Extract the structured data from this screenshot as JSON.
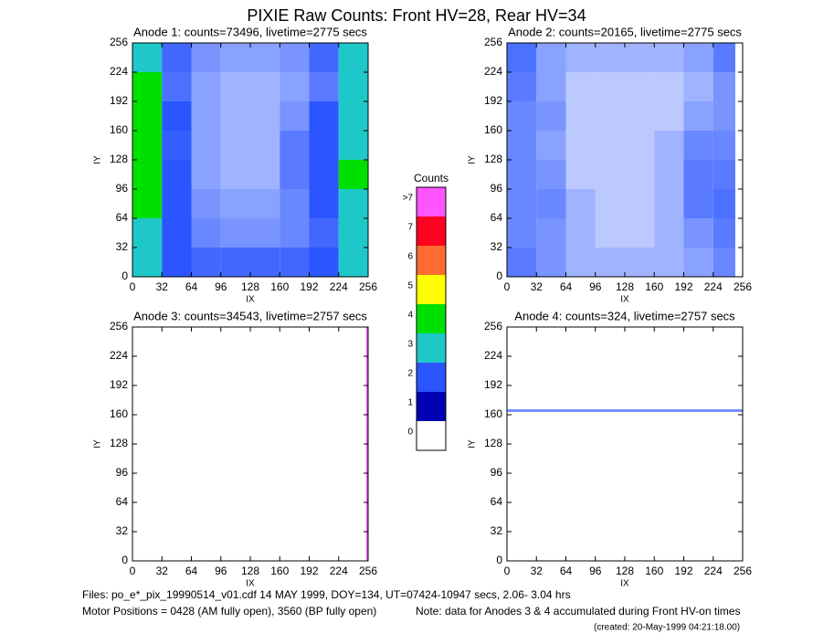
{
  "title": "PIXIE Raw Counts:  Front HV=28, Rear HV=34",
  "colorbar": {
    "title": "Counts",
    "ticks": [
      0,
      1,
      2,
      3,
      4,
      5,
      6,
      7,
      {
        "value": 8,
        "label": ">7"
      }
    ],
    "colors": [
      "#ffffff",
      "#0000b4",
      "#2a55ff",
      "#1ec8c8",
      "#00e000",
      "#ffff00",
      "#ff6a30",
      "#ff0020",
      "#ff55ff"
    ]
  },
  "chart_data": [
    {
      "type": "heatmap",
      "title": "Anode 1: counts=73496, livetime=2775 secs",
      "xlabel": "IX",
      "ylabel": "IY",
      "xlim": [
        0,
        256
      ],
      "ylim": [
        0,
        256
      ],
      "xticks": [
        0,
        32,
        64,
        96,
        128,
        160,
        192,
        224,
        256
      ],
      "yticks": [
        0,
        32,
        64,
        96,
        128,
        160,
        192,
        224,
        256
      ],
      "xbins": [
        0,
        32,
        64,
        96,
        128,
        160,
        192,
        224,
        256
      ],
      "ybins": [
        0,
        32,
        64,
        96,
        128,
        160,
        192,
        224,
        256
      ],
      "values": [
        [
          2.5,
          1.0,
          0.8,
          0.8,
          0.8,
          0.8,
          1.0,
          2.0
        ],
        [
          2.8,
          1.0,
          0.5,
          0.4,
          0.4,
          0.5,
          0.8,
          2.4
        ],
        [
          3.0,
          1.3,
          0.4,
          0.3,
          0.3,
          0.5,
          1.2,
          2.8
        ],
        [
          3.2,
          1.2,
          0.3,
          0.2,
          0.2,
          0.6,
          1.8,
          3.0
        ],
        [
          3.0,
          0.9,
          0.3,
          0.2,
          0.2,
          0.6,
          1.6,
          2.6
        ],
        [
          3.2,
          1.0,
          0.3,
          0.2,
          0.2,
          0.4,
          1.2,
          2.8
        ],
        [
          3.0,
          0.7,
          0.3,
          0.2,
          0.2,
          0.3,
          0.6,
          2.2
        ],
        [
          2.5,
          0.8,
          0.4,
          0.3,
          0.3,
          0.4,
          0.8,
          2.0
        ]
      ]
    },
    {
      "type": "heatmap",
      "title": "Anode 2: counts=20165, livetime=2775 secs",
      "xlabel": "IX",
      "ylabel": "IY",
      "xlim": [
        0,
        256
      ],
      "ylim": [
        0,
        256
      ],
      "xticks": [
        0,
        32,
        64,
        96,
        128,
        160,
        192,
        224,
        256
      ],
      "yticks": [
        0,
        32,
        64,
        96,
        128,
        160,
        192,
        224,
        256
      ],
      "xbins": [
        0,
        32,
        64,
        96,
        128,
        160,
        192,
        224,
        248
      ],
      "ybins": [
        0,
        32,
        64,
        96,
        128,
        160,
        192,
        224,
        256
      ],
      "values": [
        [
          0.6,
          0.4,
          0.2,
          0.2,
          0.2,
          0.2,
          0.3,
          0.5
        ],
        [
          0.5,
          0.4,
          0.2,
          0.1,
          0.1,
          0.2,
          0.4,
          0.6
        ],
        [
          0.5,
          0.5,
          0.2,
          0.1,
          0.1,
          0.2,
          0.6,
          0.7
        ],
        [
          0.5,
          0.4,
          0.1,
          0.1,
          0.1,
          0.2,
          0.6,
          0.6
        ],
        [
          0.5,
          0.3,
          0.1,
          0.1,
          0.1,
          0.2,
          0.5,
          0.5
        ],
        [
          0.5,
          0.4,
          0.1,
          0.1,
          0.1,
          0.1,
          0.3,
          0.4
        ],
        [
          0.6,
          0.3,
          0.1,
          0.1,
          0.1,
          0.1,
          0.2,
          0.4
        ],
        [
          0.7,
          0.3,
          0.2,
          0.2,
          0.2,
          0.2,
          0.3,
          0.6
        ]
      ]
    },
    {
      "type": "heatmap",
      "title": "Anode 3: counts=34543, livetime=2757 secs",
      "xlabel": "IX",
      "ylabel": "IY",
      "xlim": [
        0,
        256
      ],
      "ylim": [
        0,
        256
      ],
      "xticks": [
        0,
        32,
        64,
        96,
        128,
        160,
        192,
        224,
        256
      ],
      "yticks": [
        0,
        32,
        64,
        96,
        128,
        160,
        192,
        224,
        256
      ],
      "xbins": [
        0,
        254,
        256
      ],
      "ybins": [
        0,
        256
      ],
      "values": [
        [
          0,
          67
        ]
      ]
    },
    {
      "type": "heatmap",
      "title": "Anode 4: counts=324, livetime=2757 secs",
      "xlabel": "IX",
      "ylabel": "IY",
      "xlim": [
        0,
        256
      ],
      "ylim": [
        0,
        256
      ],
      "xticks": [
        0,
        32,
        64,
        96,
        128,
        160,
        192,
        224,
        256
      ],
      "yticks": [
        0,
        32,
        64,
        96,
        128,
        160,
        192,
        224,
        256
      ],
      "xbins": [
        0,
        256
      ],
      "ybins": [
        0,
        163,
        166,
        256
      ],
      "values": [
        [
          0
        ],
        [
          0.42
        ],
        [
          0
        ]
      ]
    }
  ],
  "footer": {
    "files": "Files: po_e*_pix_19990514_v01.cdf   14 MAY 1999, DOY=134, UT=07424-10947 secs,  2.06- 3.04 hrs",
    "motor": "Motor Positions = 0428 (AM fully open), 3560 (BP fully open)",
    "note": "Note: data for Anodes 3 & 4 accumulated during Front HV-on times",
    "created": "(created: 20-May-1999 04:21:18.00)"
  }
}
